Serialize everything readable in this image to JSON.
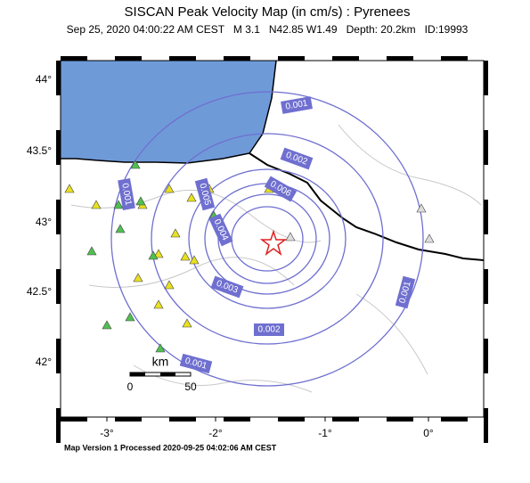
{
  "header": {
    "title": "SISCAN Peak Velocity Map (in cm/s) : Pyrenees",
    "subtitle": "Sep 25, 2020 04:00:22 AM CEST   M 3.1   N42.85 W1.49   Depth: 20.2km   ID:19993"
  },
  "axes": {
    "x_labels": [
      "-3°",
      "-2°",
      "-1°",
      "0°"
    ],
    "y_labels": [
      "44°",
      "43.5°",
      "43°",
      "42.5°",
      "42°"
    ]
  },
  "contour_labels": [
    "0.001",
    "0.002",
    "0.005",
    "0.006",
    "0.001",
    "0.004",
    "0.003",
    "0.002",
    "0.001",
    "0.001"
  ],
  "scale_bar": {
    "unit": "km",
    "start": "0",
    "end": "50"
  },
  "footer": "Map Version 1 Processed 2020-09-25 04:02:06 AM CEST"
}
